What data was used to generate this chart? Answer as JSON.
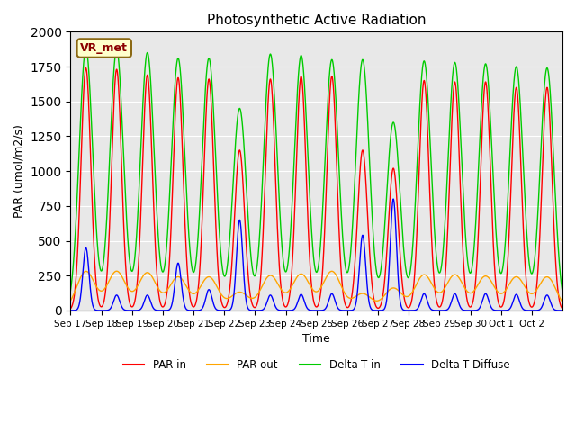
{
  "title": "Photosynthetic Active Radiation",
  "ylabel": "PAR (umol/m2/s)",
  "xlabel": "Time",
  "annotation": "VR_met",
  "ylim": [
    0,
    2000
  ],
  "background_color": "#e8e8e8",
  "legend_labels": [
    "PAR in",
    "PAR out",
    "Delta-T in",
    "Delta-T Diffuse"
  ],
  "legend_colors": [
    "#ff0000",
    "#ff8800",
    "#00cc00",
    "#0000ff"
  ],
  "x_tick_labels": [
    "Sep 17",
    "Sep 18",
    "Sep 19",
    "Sep 20",
    "Sep 21",
    "Sep 22",
    "Sep 23",
    "Sep 24",
    "Sep 25",
    "Sep 26",
    "Sep 27",
    "Sep 28",
    "Sep 29",
    "Sep 30",
    "Oct 1",
    "Oct 2"
  ],
  "num_days": 16,
  "day_peaks_green": [
    1880,
    1870,
    1850,
    1810,
    1810,
    1450,
    1840,
    1830,
    1800,
    1800,
    1350,
    1790,
    1780,
    1770,
    1750,
    1740
  ],
  "day_peaks_red": [
    1740,
    1730,
    1690,
    1670,
    1660,
    1150,
    1660,
    1680,
    1680,
    1150,
    1020,
    1650,
    1640,
    1640,
    1600,
    1600
  ],
  "day_peaks_orange": [
    280,
    280,
    270,
    240,
    240,
    130,
    250,
    260,
    280,
    120,
    160,
    255,
    255,
    245,
    240,
    240
  ],
  "day_peaks_blue": [
    450,
    110,
    110,
    340,
    150,
    650,
    110,
    115,
    120,
    540,
    800,
    120,
    120,
    120,
    115,
    110
  ],
  "color_green": "#00cc00",
  "color_red": "#ff0000",
  "color_orange": "#ffa500",
  "color_blue": "#0000ff"
}
